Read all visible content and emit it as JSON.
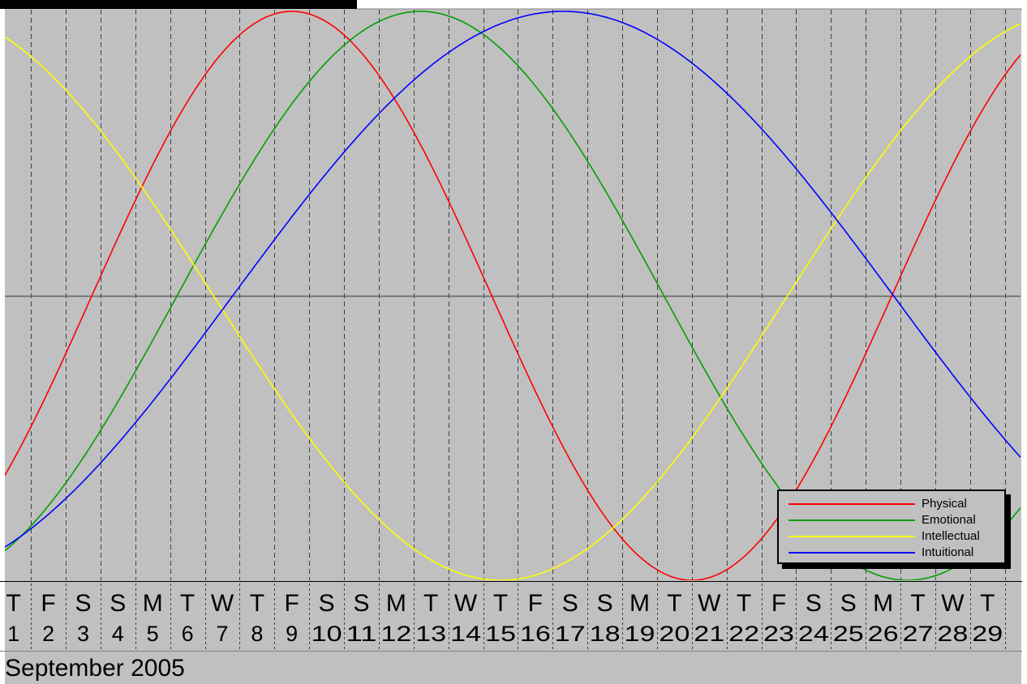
{
  "chart_data": {
    "type": "line",
    "title": "",
    "month_label": "September 2005",
    "x_start": 0.75,
    "x_end": 29.95,
    "ylim": [
      -1,
      1
    ],
    "grid": "dashed vertical lines between days; solid horizontal zero line",
    "days": [
      {
        "wd": "T",
        "d": "1"
      },
      {
        "wd": "F",
        "d": "2"
      },
      {
        "wd": "S",
        "d": "3"
      },
      {
        "wd": "S",
        "d": "4"
      },
      {
        "wd": "M",
        "d": "5"
      },
      {
        "wd": "T",
        "d": "6"
      },
      {
        "wd": "W",
        "d": "7"
      },
      {
        "wd": "T",
        "d": "8"
      },
      {
        "wd": "F",
        "d": "9"
      },
      {
        "wd": "S",
        "d": "10"
      },
      {
        "wd": "S",
        "d": "11"
      },
      {
        "wd": "M",
        "d": "12"
      },
      {
        "wd": "T",
        "d": "13"
      },
      {
        "wd": "W",
        "d": "14"
      },
      {
        "wd": "T",
        "d": "15"
      },
      {
        "wd": "F",
        "d": "16"
      },
      {
        "wd": "S",
        "d": "17"
      },
      {
        "wd": "S",
        "d": "18"
      },
      {
        "wd": "M",
        "d": "19"
      },
      {
        "wd": "T",
        "d": "20"
      },
      {
        "wd": "W",
        "d": "21"
      },
      {
        "wd": "T",
        "d": "22"
      },
      {
        "wd": "F",
        "d": "23"
      },
      {
        "wd": "S",
        "d": "24"
      },
      {
        "wd": "S",
        "d": "25"
      },
      {
        "wd": "M",
        "d": "26"
      },
      {
        "wd": "T",
        "d": "27"
      },
      {
        "wd": "W",
        "d": "28"
      },
      {
        "wd": "T",
        "d": "29"
      }
    ],
    "series": [
      {
        "name": "Physical",
        "color": "#ff0000",
        "period": 23,
        "peak_day": 9.0
      },
      {
        "name": "Emotional",
        "color": "#00a000",
        "period": 28,
        "peak_day": 12.7
      },
      {
        "name": "Intellectual",
        "color": "#ffff00",
        "period": 33,
        "peak_day": -1.5
      },
      {
        "name": "Intuitional",
        "color": "#0000ff",
        "period": 38,
        "peak_day": 16.8
      }
    ],
    "legend_position": "bottom-right"
  },
  "colors": {
    "background": "#c0c0c0",
    "grid": "#404040",
    "zero_line": "#606060"
  }
}
